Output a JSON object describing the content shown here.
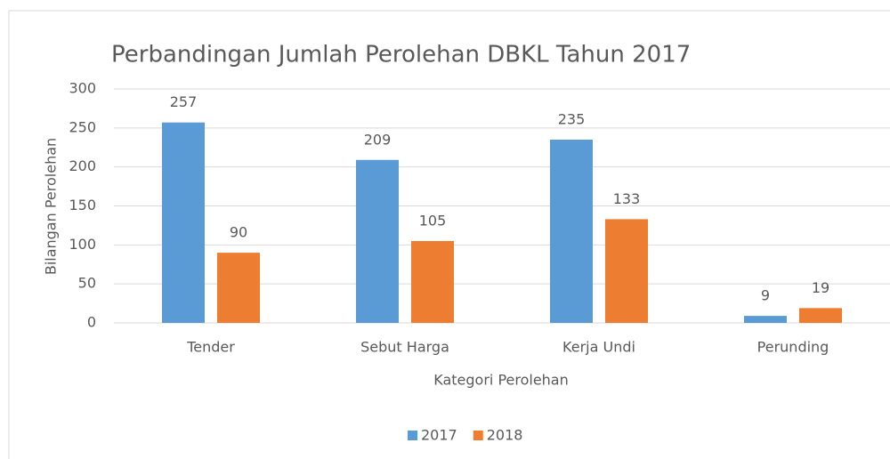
{
  "chart_data": {
    "type": "bar",
    "title": "Perbandingan Jumlah Perolehan DBKL Tahun 2017",
    "x_label": "Kategori Perolehan",
    "y_label": "Bilangan Perolehan",
    "categories": [
      "Tender",
      "Sebut Harga",
      "Kerja Undi",
      "Perunding"
    ],
    "series": [
      {
        "name": "2017",
        "color": "#5b9bd5",
        "values": [
          257,
          209,
          235,
          9
        ]
      },
      {
        "name": "2018",
        "color": "#ed7d31",
        "values": [
          90,
          105,
          133,
          19
        ]
      }
    ],
    "ylim": [
      0,
      300
    ],
    "yticks": [
      0,
      50,
      100,
      150,
      200,
      250,
      300
    ],
    "grid": true,
    "legend": "bottom"
  }
}
